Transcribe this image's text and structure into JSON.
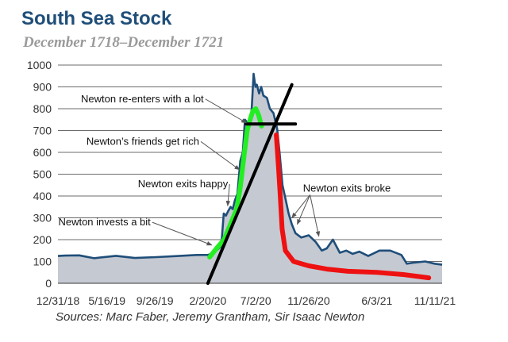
{
  "chart_data": {
    "type": "area",
    "title": "South Sea Stock",
    "subtitle": "December 1718–December 1721",
    "source": "Sources: Marc Faber, Jeremy Grantham, Sir Isaac Newton",
    "xlabel": "",
    "ylabel": "",
    "ylim": [
      0,
      1000
    ],
    "y_ticks": [
      "0",
      "100",
      "200",
      "300",
      "400",
      "500",
      "600",
      "700",
      "800",
      "900",
      "1000"
    ],
    "x_range": [
      "1718-12-31",
      "1721-12-01"
    ],
    "x_ticks": [
      {
        "date": "1718-12-31",
        "label": "12/31/18"
      },
      {
        "date": "1719-05-16",
        "label": "5/16/19"
      },
      {
        "date": "1719-09-26",
        "label": "9/26/19"
      },
      {
        "date": "1720-02-20",
        "label": "2/20/20"
      },
      {
        "date": "1720-07-02",
        "label": "7/2/20"
      },
      {
        "date": "1720-11-26",
        "label": "11/26/20"
      },
      {
        "date": "1721-06-03",
        "label": "6/3/21"
      },
      {
        "date": "1721-11-11",
        "label": "11/11/21"
      }
    ],
    "grid": {
      "horizontal": true,
      "vertical": false
    },
    "colors": {
      "area_fill": "#c5c9d2",
      "line": "#1f4e79",
      "green_overlay": "#22ee22",
      "red_overlay": "#ee1111",
      "ink": "#000000"
    },
    "series": [
      {
        "values": [
          {
            "x": "1718-12-31",
            "y": 125
          },
          {
            "x": "1719-01-20",
            "y": 127
          },
          {
            "x": "1719-02-28",
            "y": 128
          },
          {
            "x": "1719-04-10",
            "y": 115
          },
          {
            "x": "1719-06-10",
            "y": 126
          },
          {
            "x": "1719-08-01",
            "y": 116
          },
          {
            "x": "1719-10-01",
            "y": 120
          },
          {
            "x": "1719-12-01",
            "y": 125
          },
          {
            "x": "1720-01-20",
            "y": 130
          },
          {
            "x": "1720-02-20",
            "y": 130
          },
          {
            "x": "1720-03-08",
            "y": 140
          },
          {
            "x": "1720-03-28",
            "y": 170
          },
          {
            "x": "1720-04-04",
            "y": 320
          },
          {
            "x": "1720-04-10",
            "y": 310
          },
          {
            "x": "1720-04-16",
            "y": 330
          },
          {
            "x": "1720-04-23",
            "y": 350
          },
          {
            "x": "1720-04-29",
            "y": 340
          },
          {
            "x": "1720-05-05",
            "y": 380
          },
          {
            "x": "1720-05-12",
            "y": 410
          },
          {
            "x": "1720-05-20",
            "y": 560
          },
          {
            "x": "1720-05-27",
            "y": 600
          },
          {
            "x": "1720-06-02",
            "y": 750
          },
          {
            "x": "1720-06-12",
            "y": 730
          },
          {
            "x": "1720-06-20",
            "y": 780
          },
          {
            "x": "1720-06-26",
            "y": 960
          },
          {
            "x": "1720-07-01",
            "y": 900
          },
          {
            "x": "1720-07-05",
            "y": 910
          },
          {
            "x": "1720-07-11",
            "y": 870
          },
          {
            "x": "1720-07-17",
            "y": 900
          },
          {
            "x": "1720-07-23",
            "y": 860
          },
          {
            "x": "1720-08-02",
            "y": 850
          },
          {
            "x": "1720-08-10",
            "y": 800
          },
          {
            "x": "1720-08-20",
            "y": 780
          },
          {
            "x": "1720-08-30",
            "y": 710
          },
          {
            "x": "1720-09-06",
            "y": 600
          },
          {
            "x": "1720-09-14",
            "y": 450
          },
          {
            "x": "1720-09-22",
            "y": 390
          },
          {
            "x": "1720-10-01",
            "y": 320
          },
          {
            "x": "1720-10-10",
            "y": 270
          },
          {
            "x": "1720-10-20",
            "y": 230
          },
          {
            "x": "1720-11-05",
            "y": 210
          },
          {
            "x": "1720-11-26",
            "y": 220
          },
          {
            "x": "1720-12-15",
            "y": 190
          },
          {
            "x": "1721-01-01",
            "y": 150
          },
          {
            "x": "1721-01-15",
            "y": 160
          },
          {
            "x": "1721-02-01",
            "y": 200
          },
          {
            "x": "1721-02-20",
            "y": 140
          },
          {
            "x": "1721-03-10",
            "y": 150
          },
          {
            "x": "1721-03-28",
            "y": 135
          },
          {
            "x": "1721-04-15",
            "y": 145
          },
          {
            "x": "1721-05-10",
            "y": 125
          },
          {
            "x": "1721-06-10",
            "y": 150
          },
          {
            "x": "1721-07-10",
            "y": 150
          },
          {
            "x": "1721-08-10",
            "y": 130
          },
          {
            "x": "1721-08-25",
            "y": 90
          },
          {
            "x": "1721-09-15",
            "y": 95
          },
          {
            "x": "1721-10-15",
            "y": 100
          },
          {
            "x": "1721-11-10",
            "y": 90
          },
          {
            "x": "1721-12-01",
            "y": 85
          }
        ]
      }
    ],
    "overlays": {
      "green": [
        {
          "x": "1720-02-25",
          "y": 120
        },
        {
          "x": "1720-03-15",
          "y": 160
        },
        {
          "x": "1720-04-05",
          "y": 200
        },
        {
          "x": "1720-04-25",
          "y": 280
        },
        {
          "x": "1720-05-10",
          "y": 340
        },
        {
          "x": "1720-05-20",
          "y": 440
        },
        {
          "x": "1720-05-30",
          "y": 580
        },
        {
          "x": "1720-06-08",
          "y": 700
        },
        {
          "x": "1720-06-18",
          "y": 760
        },
        {
          "x": "1720-06-24",
          "y": 790
        },
        {
          "x": "1720-07-02",
          "y": 800
        },
        {
          "x": "1720-07-10",
          "y": 770
        },
        {
          "x": "1720-07-18",
          "y": 720
        }
      ],
      "red": [
        {
          "x": "1720-08-28",
          "y": 680
        },
        {
          "x": "1720-09-03",
          "y": 530
        },
        {
          "x": "1720-09-08",
          "y": 400
        },
        {
          "x": "1720-09-13",
          "y": 250
        },
        {
          "x": "1720-09-22",
          "y": 150
        },
        {
          "x": "1720-10-15",
          "y": 100
        },
        {
          "x": "1720-11-26",
          "y": 80
        },
        {
          "x": "1721-01-15",
          "y": 65
        },
        {
          "x": "1721-03-15",
          "y": 55
        },
        {
          "x": "1721-06-03",
          "y": 50
        },
        {
          "x": "1721-08-15",
          "y": 40
        },
        {
          "x": "1721-10-25",
          "y": 25
        }
      ],
      "horizontal_bar": {
        "x1": "1720-06-05",
        "x2": "1720-10-20",
        "y": 730
      },
      "diagonal": {
        "x1": "1720-02-20",
        "y1": 0,
        "x2": "1720-10-10",
        "y2": 910
      }
    },
    "annotations": [
      {
        "text": "Newton re-enters with a lot",
        "label_x": "1719-03-05",
        "label_y": 830,
        "target_x": "1720-06-06",
        "target_y": 735
      },
      {
        "text": "Newton’s friends get rich",
        "label_x": "1719-03-20",
        "label_y": 635,
        "target_x": "1720-05-18",
        "target_y": 520
      },
      {
        "text": "Newton exits happy",
        "label_x": "1719-08-10",
        "label_y": 440,
        "target_x": "1720-04-15",
        "target_y": 355
      },
      {
        "text": "Newton invests a bit",
        "label_x": "1719-01-01",
        "label_y": 265,
        "target_x": "1720-03-02",
        "target_y": 175
      },
      {
        "text": "Newton exits broke",
        "label_x": "1720-11-10",
        "label_y": 420,
        "targets": [
          {
            "x": "1720-10-10",
            "y": 300
          },
          {
            "x": "1720-10-25",
            "y": 270
          },
          {
            "x": "1720-12-24",
            "y": 215
          }
        ]
      }
    ]
  }
}
